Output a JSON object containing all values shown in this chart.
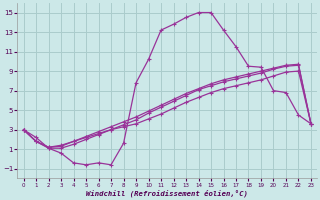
{
  "title": "",
  "xlabel": "Windchill (Refroidissement éolien,°C)",
  "ylabel": "",
  "bg_color": "#cce8e8",
  "grid_color": "#aacccc",
  "line_color": "#993399",
  "xlim": [
    -0.5,
    23.5
  ],
  "ylim": [
    -2.0,
    16.0
  ],
  "yticks": [
    -1,
    1,
    3,
    5,
    7,
    9,
    11,
    13,
    15
  ],
  "xticks": [
    0,
    1,
    2,
    3,
    4,
    5,
    6,
    7,
    8,
    9,
    10,
    11,
    12,
    13,
    14,
    15,
    16,
    17,
    18,
    19,
    20,
    21,
    22,
    23
  ],
  "curve1_x": [
    0,
    1,
    2,
    3,
    4,
    5,
    6,
    7,
    8,
    9,
    10,
    11,
    12,
    13,
    14,
    15,
    16,
    17,
    18,
    19,
    20,
    21,
    22,
    23
  ],
  "curve1_y": [
    3.0,
    2.2,
    1.1,
    0.6,
    -0.4,
    -0.6,
    -0.4,
    -0.6,
    1.6,
    7.8,
    10.2,
    13.2,
    13.8,
    14.5,
    15.0,
    15.0,
    13.2,
    11.5,
    9.5,
    9.4,
    7.0,
    6.8,
    4.5,
    3.6
  ],
  "curve2_x": [
    0,
    1,
    2,
    3,
    4,
    5,
    6,
    7,
    8,
    9,
    10,
    11,
    12,
    13,
    14,
    15,
    16,
    17,
    18,
    19,
    20,
    21,
    22,
    23
  ],
  "curve2_y": [
    3.0,
    1.8,
    1.1,
    1.1,
    1.5,
    2.0,
    2.5,
    3.0,
    3.5,
    4.0,
    4.7,
    5.3,
    5.9,
    6.5,
    7.1,
    7.5,
    7.9,
    8.2,
    8.5,
    8.8,
    9.2,
    9.5,
    9.6,
    3.6
  ],
  "curve3_x": [
    0,
    1,
    2,
    3,
    4,
    5,
    6,
    7,
    8,
    9,
    10,
    11,
    12,
    13,
    14,
    15,
    16,
    17,
    18,
    19,
    20,
    21,
    22,
    23
  ],
  "curve3_y": [
    3.0,
    1.8,
    1.2,
    1.3,
    1.8,
    2.3,
    2.8,
    3.3,
    3.8,
    4.3,
    4.9,
    5.5,
    6.1,
    6.7,
    7.2,
    7.7,
    8.1,
    8.4,
    8.7,
    9.0,
    9.3,
    9.6,
    9.7,
    3.6
  ],
  "curve4_x": [
    0,
    1,
    2,
    3,
    4,
    5,
    6,
    7,
    8,
    9,
    10,
    11,
    12,
    13,
    14,
    15,
    16,
    17,
    18,
    19,
    20,
    21,
    22,
    23
  ],
  "curve4_y": [
    3.0,
    1.8,
    1.2,
    1.4,
    1.8,
    2.2,
    2.6,
    3.0,
    3.3,
    3.6,
    4.1,
    4.6,
    5.2,
    5.8,
    6.3,
    6.8,
    7.2,
    7.5,
    7.8,
    8.1,
    8.5,
    8.9,
    9.0,
    3.6
  ]
}
